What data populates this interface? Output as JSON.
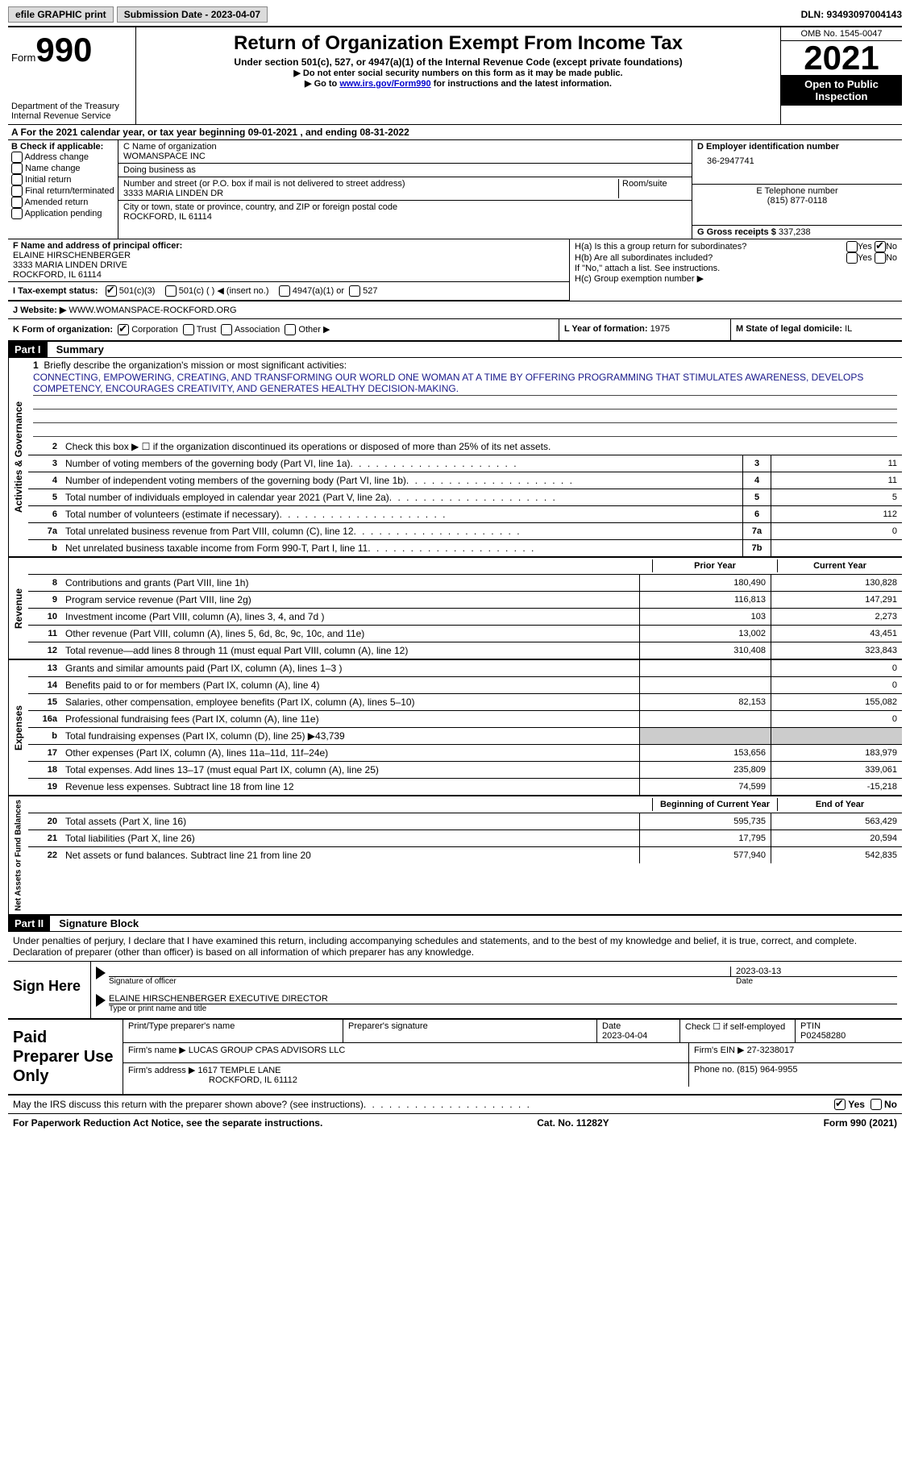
{
  "topbar": {
    "efile": "efile GRAPHIC print",
    "submission": "Submission Date - 2023-04-07",
    "dln": "DLN: 93493097004143"
  },
  "header": {
    "form_label": "Form",
    "form_no": "990",
    "dept": "Department of the Treasury\nInternal Revenue Service",
    "title": "Return of Organization Exempt From Income Tax",
    "subtitle": "Under section 501(c), 527, or 4947(a)(1) of the Internal Revenue Code (except private foundations)",
    "note1": "▶ Do not enter social security numbers on this form as it may be made public.",
    "note2_pre": "▶ Go to ",
    "note2_link": "www.irs.gov/Form990",
    "note2_post": " for instructions and the latest information.",
    "omb": "OMB No. 1545-0047",
    "year": "2021",
    "inspection": "Open to Public Inspection"
  },
  "line_a": "A For the 2021 calendar year, or tax year beginning 09-01-2021    , and ending 08-31-2022",
  "box_b": {
    "label": "B Check if applicable:",
    "items": [
      "Address change",
      "Name change",
      "Initial return",
      "Final return/terminated",
      "Amended return",
      "Application pending"
    ]
  },
  "box_c": {
    "name_label": "C Name of organization",
    "name": "WOMANSPACE INC",
    "dba_label": "Doing business as",
    "dba": "",
    "street_label": "Number and street (or P.O. box if mail is not delivered to street address)",
    "room_label": "Room/suite",
    "street": "3333 MARIA LINDEN DR",
    "city_label": "City or town, state or province, country, and ZIP or foreign postal code",
    "city": "ROCKFORD, IL  61114"
  },
  "box_d": {
    "label": "D Employer identification number",
    "value": "36-2947741"
  },
  "box_e": {
    "label": "E Telephone number",
    "value": "(815) 877-0118"
  },
  "box_g": {
    "label": "G Gross receipts $",
    "value": "337,238"
  },
  "box_f": {
    "label": "F Name and address of principal officer:",
    "name": "ELAINE HIRSCHENBERGER",
    "addr1": "3333 MARIA LINDEN DRIVE",
    "addr2": "ROCKFORD, IL  61114"
  },
  "box_h": {
    "a_label": "H(a)  Is this a group return for subordinates?",
    "b_label": "H(b)  Are all subordinates included?",
    "b_note": "If \"No,\" attach a list. See instructions.",
    "c_label": "H(c)  Group exemption number ▶",
    "yes": "Yes",
    "no": "No"
  },
  "box_i": {
    "label": "I    Tax-exempt status:",
    "opts": [
      "501(c)(3)",
      "501(c) (  ) ◀ (insert no.)",
      "4947(a)(1) or",
      "527"
    ]
  },
  "box_j": {
    "label": "J   Website: ▶",
    "value": "WWW.WOMANSPACE-ROCKFORD.ORG"
  },
  "box_k": {
    "label": "K Form of organization:",
    "opts": [
      "Corporation",
      "Trust",
      "Association",
      "Other ▶"
    ],
    "l_label": "L Year of formation:",
    "l_val": "1975",
    "m_label": "M State of legal domicile:",
    "m_val": "IL"
  },
  "part1": {
    "header": "Part I",
    "title": "Summary",
    "mission_label": "Briefly describe the organization's mission or most significant activities:",
    "mission": "CONNECTING, EMPOWERING, CREATING, AND TRANSFORMING OUR WORLD ONE WOMAN AT A TIME BY OFFERING PROGRAMMING THAT STIMULATES AWARENESS, DEVELOPS COMPETENCY, ENCOURAGES CREATIVITY, AND GENERATES HEALTHY DECISION-MAKING.",
    "line2": "Check this box ▶ ☐  if the organization discontinued its operations or disposed of more than 25% of its net assets.",
    "sides": {
      "ag": "Activities & Governance",
      "rev": "Revenue",
      "exp": "Expenses",
      "na": "Net Assets or Fund Balances"
    },
    "rows_single": [
      {
        "n": "3",
        "d": "Number of voting members of the governing body (Part VI, line 1a)",
        "box": "3",
        "v": "11"
      },
      {
        "n": "4",
        "d": "Number of independent voting members of the governing body (Part VI, line 1b)",
        "box": "4",
        "v": "11"
      },
      {
        "n": "5",
        "d": "Total number of individuals employed in calendar year 2021 (Part V, line 2a)",
        "box": "5",
        "v": "5"
      },
      {
        "n": "6",
        "d": "Total number of volunteers (estimate if necessary)",
        "box": "6",
        "v": "112"
      },
      {
        "n": "7a",
        "d": "Total unrelated business revenue from Part VIII, column (C), line 12",
        "box": "7a",
        "v": "0"
      },
      {
        "n": "b",
        "d": "Net unrelated business taxable income from Form 990-T, Part I, line 11",
        "box": "7b",
        "v": ""
      }
    ],
    "hdr_prior": "Prior Year",
    "hdr_current": "Current Year",
    "rows_rev": [
      {
        "n": "8",
        "d": "Contributions and grants (Part VIII, line 1h)",
        "p": "180,490",
        "c": "130,828"
      },
      {
        "n": "9",
        "d": "Program service revenue (Part VIII, line 2g)",
        "p": "116,813",
        "c": "147,291"
      },
      {
        "n": "10",
        "d": "Investment income (Part VIII, column (A), lines 3, 4, and 7d )",
        "p": "103",
        "c": "2,273"
      },
      {
        "n": "11",
        "d": "Other revenue (Part VIII, column (A), lines 5, 6d, 8c, 9c, 10c, and 11e)",
        "p": "13,002",
        "c": "43,451"
      },
      {
        "n": "12",
        "d": "Total revenue—add lines 8 through 11 (must equal Part VIII, column (A), line 12)",
        "p": "310,408",
        "c": "323,843"
      }
    ],
    "rows_exp": [
      {
        "n": "13",
        "d": "Grants and similar amounts paid (Part IX, column (A), lines 1–3 )",
        "p": "",
        "c": "0"
      },
      {
        "n": "14",
        "d": "Benefits paid to or for members (Part IX, column (A), line 4)",
        "p": "",
        "c": "0"
      },
      {
        "n": "15",
        "d": "Salaries, other compensation, employee benefits (Part IX, column (A), lines 5–10)",
        "p": "82,153",
        "c": "155,082"
      },
      {
        "n": "16a",
        "d": "Professional fundraising fees (Part IX, column (A), line 11e)",
        "p": "",
        "c": "0"
      },
      {
        "n": "b",
        "d": "Total fundraising expenses (Part IX, column (D), line 25) ▶43,739",
        "p": "SHADE",
        "c": "SHADE"
      },
      {
        "n": "17",
        "d": "Other expenses (Part IX, column (A), lines 11a–11d, 11f–24e)",
        "p": "153,656",
        "c": "183,979"
      },
      {
        "n": "18",
        "d": "Total expenses. Add lines 13–17 (must equal Part IX, column (A), line 25)",
        "p": "235,809",
        "c": "339,061"
      },
      {
        "n": "19",
        "d": "Revenue less expenses. Subtract line 18 from line 12",
        "p": "74,599",
        "c": "-15,218"
      }
    ],
    "hdr_begin": "Beginning of Current Year",
    "hdr_end": "End of Year",
    "rows_na": [
      {
        "n": "20",
        "d": "Total assets (Part X, line 16)",
        "p": "595,735",
        "c": "563,429"
      },
      {
        "n": "21",
        "d": "Total liabilities (Part X, line 26)",
        "p": "17,795",
        "c": "20,594"
      },
      {
        "n": "22",
        "d": "Net assets or fund balances. Subtract line 21 from line 20",
        "p": "577,940",
        "c": "542,835"
      }
    ]
  },
  "part2": {
    "header": "Part II",
    "title": "Signature Block",
    "decl": "Under penalties of perjury, I declare that I have examined this return, including accompanying schedules and statements, and to the best of my knowledge and belief, it is true, correct, and complete. Declaration of preparer (other than officer) is based on all information of which preparer has any knowledge."
  },
  "sign": {
    "label": "Sign Here",
    "sig_label": "Signature of officer",
    "date_label": "Date",
    "date": "2023-03-13",
    "name": "ELAINE HIRSCHENBERGER  EXECUTIVE DIRECTOR",
    "name_label": "Type or print name and title"
  },
  "paid": {
    "label": "Paid Preparer Use Only",
    "print_label": "Print/Type preparer's name",
    "sig_label": "Preparer's signature",
    "date_label": "Date",
    "date": "2023-04-04",
    "check_label": "Check ☐ if self-employed",
    "ptin_label": "PTIN",
    "ptin": "P02458280",
    "firm_name_label": "Firm's name    ▶",
    "firm_name": "LUCAS GROUP CPAS ADVISORS LLC",
    "firm_ein_label": "Firm's EIN ▶",
    "firm_ein": "27-3238017",
    "firm_addr_label": "Firm's address ▶",
    "firm_addr1": "1617 TEMPLE LANE",
    "firm_addr2": "ROCKFORD, IL  61112",
    "phone_label": "Phone no.",
    "phone": "(815) 964-9955"
  },
  "discuss": {
    "q": "May the IRS discuss this return with the preparer shown above? (see instructions)",
    "yes": "Yes",
    "no": "No"
  },
  "footer": {
    "left": "For Paperwork Reduction Act Notice, see the separate instructions.",
    "mid": "Cat. No. 11282Y",
    "right": "Form 990 (2021)"
  },
  "colors": {
    "link": "#0000cd",
    "shade": "#cccccc"
  }
}
